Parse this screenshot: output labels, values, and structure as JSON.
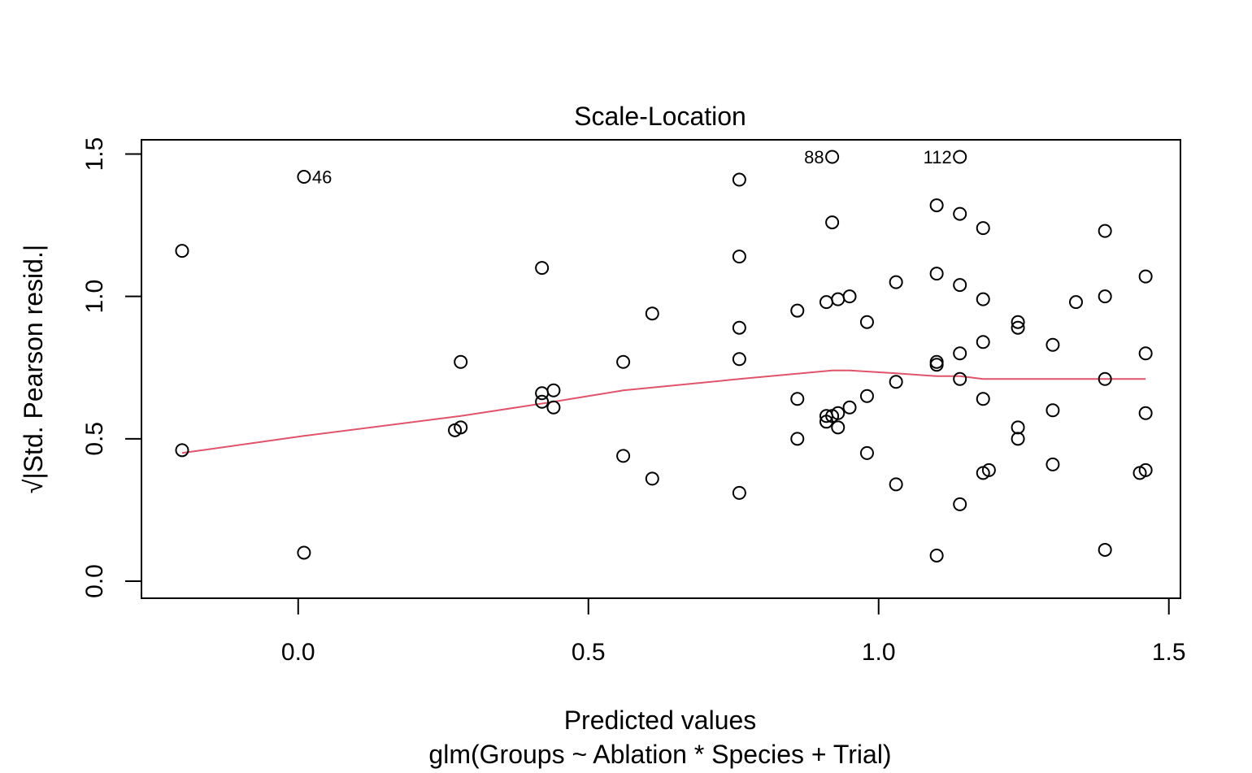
{
  "chart_data": {
    "type": "scatter",
    "title": "Scale-Location",
    "xlabel": "Predicted values",
    "subtitle": "glm(Groups ~ Ablation * Species + Trial)",
    "ylabel": "√|Std. Pearson resid.|",
    "xlim": [
      -0.27,
      1.52
    ],
    "ylim": [
      -0.06,
      1.55
    ],
    "x_ticks": [
      0.0,
      0.5,
      1.0,
      1.5
    ],
    "x_tick_labels": [
      "0.0",
      "0.5",
      "1.0",
      "1.5"
    ],
    "y_ticks": [
      0.0,
      0.5,
      1.0,
      1.5
    ],
    "y_tick_labels": [
      "0.0",
      "0.5",
      "1.0",
      "1.5"
    ],
    "grid": false,
    "point_color": "#000000",
    "smooth_color": "#DF536B",
    "points": [
      {
        "x": -0.2,
        "y": 1.16
      },
      {
        "x": -0.2,
        "y": 0.46
      },
      {
        "x": 0.01,
        "y": 1.42,
        "label": "46"
      },
      {
        "x": 0.01,
        "y": 0.1
      },
      {
        "x": 0.27,
        "y": 0.53
      },
      {
        "x": 0.28,
        "y": 0.54
      },
      {
        "x": 0.28,
        "y": 0.77
      },
      {
        "x": 0.42,
        "y": 1.1
      },
      {
        "x": 0.42,
        "y": 0.66
      },
      {
        "x": 0.42,
        "y": 0.63
      },
      {
        "x": 0.44,
        "y": 0.67
      },
      {
        "x": 0.44,
        "y": 0.61
      },
      {
        "x": 0.56,
        "y": 0.77
      },
      {
        "x": 0.56,
        "y": 0.44
      },
      {
        "x": 0.61,
        "y": 0.94
      },
      {
        "x": 0.61,
        "y": 0.36
      },
      {
        "x": 0.76,
        "y": 1.41
      },
      {
        "x": 0.76,
        "y": 1.14
      },
      {
        "x": 0.76,
        "y": 0.89
      },
      {
        "x": 0.76,
        "y": 0.78
      },
      {
        "x": 0.76,
        "y": 0.31
      },
      {
        "x": 0.86,
        "y": 0.95
      },
      {
        "x": 0.86,
        "y": 0.64
      },
      {
        "x": 0.86,
        "y": 0.5
      },
      {
        "x": 0.91,
        "y": 0.98
      },
      {
        "x": 0.91,
        "y": 0.58
      },
      {
        "x": 0.91,
        "y": 0.56
      },
      {
        "x": 0.92,
        "y": 1.49,
        "label": "88"
      },
      {
        "x": 0.92,
        "y": 1.26
      },
      {
        "x": 0.92,
        "y": 0.58
      },
      {
        "x": 0.93,
        "y": 0.99
      },
      {
        "x": 0.93,
        "y": 0.59
      },
      {
        "x": 0.93,
        "y": 0.54
      },
      {
        "x": 0.95,
        "y": 1.0
      },
      {
        "x": 0.95,
        "y": 0.61
      },
      {
        "x": 0.98,
        "y": 0.91
      },
      {
        "x": 0.98,
        "y": 0.65
      },
      {
        "x": 0.98,
        "y": 0.45
      },
      {
        "x": 1.03,
        "y": 1.05
      },
      {
        "x": 1.03,
        "y": 0.7
      },
      {
        "x": 1.03,
        "y": 0.34
      },
      {
        "x": 1.1,
        "y": 1.32
      },
      {
        "x": 1.1,
        "y": 1.08
      },
      {
        "x": 1.1,
        "y": 0.77
      },
      {
        "x": 1.1,
        "y": 0.76
      },
      {
        "x": 1.1,
        "y": 0.09
      },
      {
        "x": 1.14,
        "y": 1.49,
        "label": "112"
      },
      {
        "x": 1.14,
        "y": 1.29
      },
      {
        "x": 1.14,
        "y": 1.04
      },
      {
        "x": 1.14,
        "y": 0.8
      },
      {
        "x": 1.14,
        "y": 0.71
      },
      {
        "x": 1.14,
        "y": 0.27
      },
      {
        "x": 1.18,
        "y": 1.24
      },
      {
        "x": 1.18,
        "y": 0.99
      },
      {
        "x": 1.18,
        "y": 0.84
      },
      {
        "x": 1.18,
        "y": 0.64
      },
      {
        "x": 1.18,
        "y": 0.38
      },
      {
        "x": 1.19,
        "y": 0.39
      },
      {
        "x": 1.24,
        "y": 0.91
      },
      {
        "x": 1.24,
        "y": 0.89
      },
      {
        "x": 1.24,
        "y": 0.54
      },
      {
        "x": 1.24,
        "y": 0.5
      },
      {
        "x": 1.3,
        "y": 0.83
      },
      {
        "x": 1.3,
        "y": 0.6
      },
      {
        "x": 1.3,
        "y": 0.41
      },
      {
        "x": 1.34,
        "y": 0.98
      },
      {
        "x": 1.39,
        "y": 1.23
      },
      {
        "x": 1.39,
        "y": 1.0
      },
      {
        "x": 1.39,
        "y": 0.71
      },
      {
        "x": 1.39,
        "y": 0.11
      },
      {
        "x": 1.46,
        "y": 1.07
      },
      {
        "x": 1.46,
        "y": 0.8
      },
      {
        "x": 1.46,
        "y": 0.59
      },
      {
        "x": 1.46,
        "y": 0.39
      },
      {
        "x": 1.45,
        "y": 0.38
      }
    ],
    "smooth_line": {
      "x": [
        -0.2,
        0.01,
        0.28,
        0.44,
        0.56,
        0.76,
        0.92,
        0.95,
        1.03,
        1.1,
        1.14,
        1.18,
        1.24,
        1.3,
        1.39,
        1.46
      ],
      "y": [
        0.45,
        0.51,
        0.58,
        0.63,
        0.67,
        0.71,
        0.74,
        0.74,
        0.73,
        0.72,
        0.72,
        0.71,
        0.71,
        0.71,
        0.71,
        0.71
      ]
    }
  }
}
